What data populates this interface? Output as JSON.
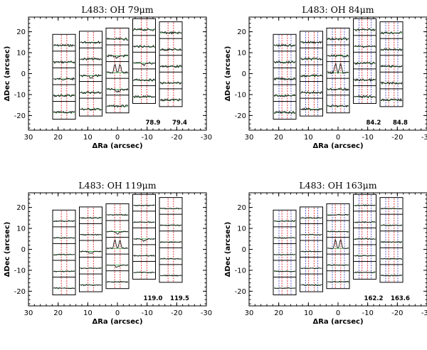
{
  "figure": {
    "description_free": true
  },
  "chart_data": [
    {
      "type": "spectral-map",
      "title": "L483: OH 79μm",
      "xlabel": "ΔRa (arcsec)",
      "ylabel": "ΔDec (arcsec)",
      "xlim": [
        30,
        -30
      ],
      "ylim": [
        -27,
        27
      ],
      "xticks": [
        "30",
        "20",
        "10",
        "0",
        "-10",
        "-20",
        "-30"
      ],
      "yticks": [
        "20",
        "10",
        "0",
        "-10",
        "-20"
      ],
      "line_wavelengths_um": [
        "78.9",
        "79.4"
      ],
      "peak_spaxel": "central",
      "peak_shape": "double-peaked emission",
      "spaxel_count": 25
    },
    {
      "type": "spectral-map",
      "title": "L483: OH 84μm",
      "xlabel": "ΔRa (arcsec)",
      "ylabel": "ΔDec (arcsec)",
      "xlim": [
        30,
        -30
      ],
      "ylim": [
        -27,
        27
      ],
      "xticks": [
        "30",
        "20",
        "10",
        "0",
        "-10",
        "-20",
        "-30"
      ],
      "yticks": [
        "20",
        "10",
        "0",
        "-10",
        "-20"
      ],
      "line_wavelengths_um": [
        "84.2",
        "84.8"
      ],
      "peak_spaxel": "central",
      "peak_shape": "double-peaked emission",
      "spaxel_count": 25
    },
    {
      "type": "spectral-map",
      "title": "L483: OH 119μm",
      "xlabel": "ΔRa (arcsec)",
      "ylabel": "ΔDec (arcsec)",
      "xlim": [
        30,
        -30
      ],
      "ylim": [
        -27,
        27
      ],
      "xticks": [
        "30",
        "20",
        "10",
        "0",
        "-10",
        "-20",
        "-30"
      ],
      "yticks": [
        "20",
        "10",
        "0",
        "-10",
        "-20"
      ],
      "line_wavelengths_um": [
        "119.0",
        "119.5"
      ],
      "peak_spaxel": "central",
      "peak_shape": "double-peaked emission",
      "spaxel_count": 25
    },
    {
      "type": "spectral-map",
      "title": "L483: OH 163μm",
      "xlabel": "ΔRa (arcsec)",
      "ylabel": "ΔDec (arcsec)",
      "xlim": [
        30,
        -30
      ],
      "ylim": [
        -27,
        27
      ],
      "xticks": [
        "30",
        "20",
        "10",
        "0",
        "-10",
        "-20",
        "-30"
      ],
      "yticks": [
        "20",
        "10",
        "0",
        "-10",
        "-20"
      ],
      "line_wavelengths_um": [
        "162.2",
        "163.6"
      ],
      "peak_spaxel": "central",
      "peak_shape": "double-peaked emission",
      "spaxel_count": 25
    }
  ],
  "colors": {
    "axes": "#000000",
    "spectrum": "#1a1a1a",
    "continuum": "#2e9e3a",
    "line_marker_red": "#e0242a",
    "line_marker_blue": "#3a3ad0"
  }
}
